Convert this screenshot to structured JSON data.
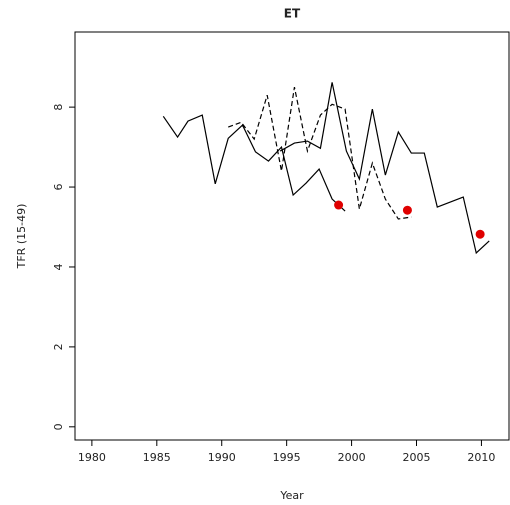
{
  "chart_data": {
    "type": "line",
    "title": "ET",
    "x_label": "Year",
    "y_label": "TFR (15-49)",
    "xlim": [
      1978.7,
      2012.2
    ],
    "ylim": [
      -0.33,
      9.88
    ],
    "xticks": [
      1980,
      1985,
      1990,
      1995,
      2000,
      2005,
      2010
    ],
    "yticks": [
      0,
      2,
      4,
      6,
      8
    ],
    "series": [
      {
        "color": "#000000",
        "linestyle": "solid",
        "x": [
          1985.5,
          1986.6,
          1987.4,
          1988.5,
          1989.5,
          1990.5,
          1991.6,
          1992.6,
          1993.6,
          1994.6,
          1995.5,
          1996.5,
          1997.5,
          1998.5,
          1999.5
        ],
        "values": [
          7.77,
          7.25,
          7.65,
          7.8,
          6.08,
          7.22,
          7.55,
          6.88,
          6.65,
          7.0,
          5.8,
          6.1,
          6.45,
          5.7,
          5.4
        ]
      },
      {
        "color": "#000000",
        "linestyle": "solid",
        "x": [
          1994.5,
          1995.6,
          1996.6,
          1997.6,
          1998.5,
          1999.6,
          2000.6,
          2001.6,
          2002.6,
          2003.6,
          2004.6,
          2005.6,
          2006.6,
          2008.6,
          2009.6,
          2010.6
        ],
        "values": [
          6.9,
          7.1,
          7.15,
          6.97,
          8.62,
          6.9,
          6.2,
          7.95,
          6.3,
          7.38,
          6.85,
          6.85,
          5.5,
          5.75,
          4.35,
          4.65
        ]
      },
      {
        "color": "#000000",
        "linestyle": "dashed",
        "x": [
          1990.5,
          1991.5,
          1992.5,
          1993.5,
          1994.6,
          1995.6,
          1996.6,
          1997.6,
          1998.5,
          1999.5,
          2000.6,
          2001.6,
          2002.6,
          2003.6,
          2004.6
        ],
        "values": [
          7.5,
          7.62,
          7.2,
          8.3,
          6.4,
          8.5,
          6.9,
          7.8,
          8.07,
          7.95,
          5.45,
          6.6,
          5.7,
          5.2,
          5.25
        ]
      }
    ],
    "points": {
      "color": "#e00000",
      "x": [
        1999.0,
        2004.3,
        2009.9
      ],
      "values": [
        5.55,
        5.42,
        4.82
      ]
    }
  }
}
